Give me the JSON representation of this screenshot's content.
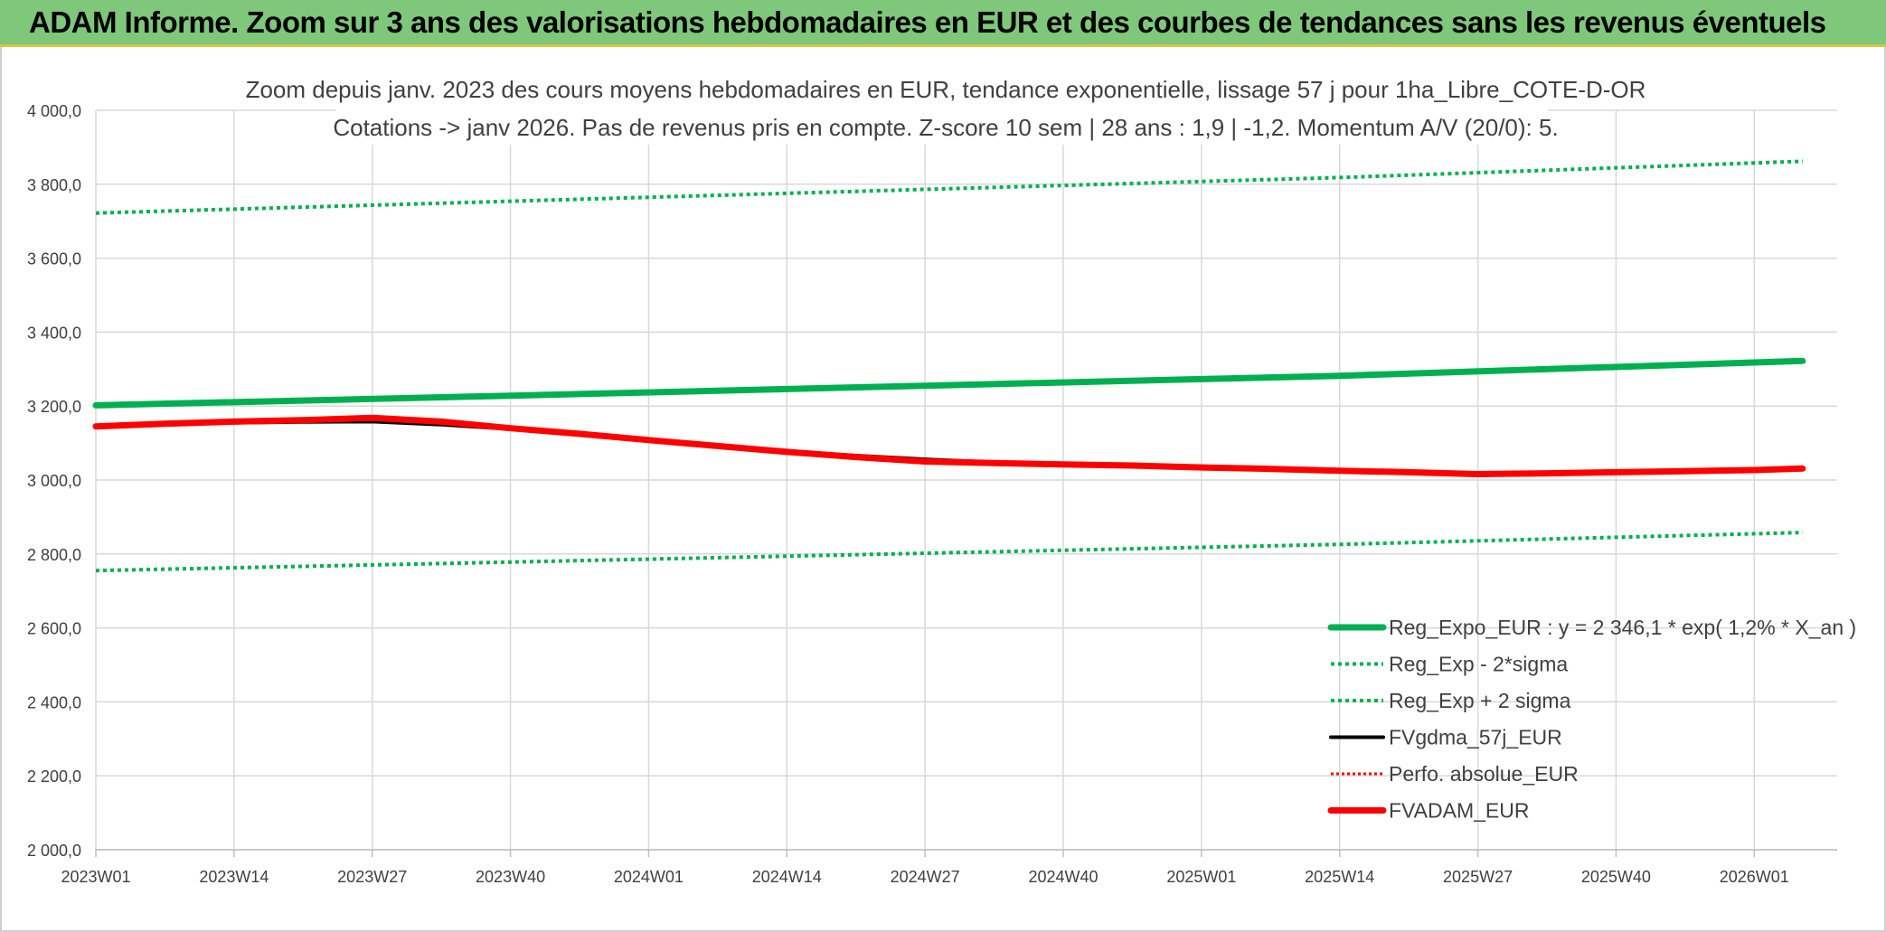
{
  "banner": {
    "title": "ADAM Informe. Zoom sur 3 ans des valorisations hebdomadaires en EUR et des courbes de tendances sans les revenus éventuels",
    "bg_color": "#7fc77a"
  },
  "chart_data": {
    "type": "line",
    "title_line1": "Zoom depuis janv. 2023 des cours moyens hebdomadaires en EUR, tendance exponentielle, lissage 57 j pour 1ha_Libre_COTE-D-OR",
    "title_line2": "Cotations -> janv 2026. Pas de revenus pris en compte. Z-score 10 sem | 28 ans : 1,9 | -1,2. Momentum A/V (20/0): 5.",
    "x_categories": [
      "2023W01",
      "2023W14",
      "2023W27",
      "2023W40",
      "2024W01",
      "2024W14",
      "2024W27",
      "2024W40",
      "2025W01",
      "2025W14",
      "2025W27",
      "2025W40",
      "2026W01"
    ],
    "x_range": [
      0,
      12.6
    ],
    "ylim": [
      2000,
      4000
    ],
    "y_ticks": [
      "2 000,0",
      "2 200,0",
      "2 400,0",
      "2 600,0",
      "2 800,0",
      "3 000,0",
      "3 200,0",
      "3 400,0",
      "3 600,0",
      "3 800,0",
      "4 000,0"
    ],
    "y_tick_values": [
      2000,
      2200,
      2400,
      2600,
      2800,
      3000,
      3200,
      3400,
      3600,
      3800,
      4000
    ],
    "grid": true,
    "legend_position": "bottom-right",
    "series": [
      {
        "name": "Reg_Expo_EUR : y = 2 346,1 * exp( 1,2% *  X_an )",
        "color": "#00b050",
        "style": "solid",
        "width": 7,
        "x": [
          0,
          3,
          6,
          9,
          12.35
        ],
        "y": [
          3202,
          3228,
          3255,
          3282,
          3322
        ]
      },
      {
        "name": "Reg_Exp - 2*sigma",
        "color": "#00b050",
        "style": "dotted",
        "width": 4,
        "x": [
          0,
          3,
          6,
          9,
          12.35
        ],
        "y": [
          2755,
          2778,
          2802,
          2826,
          2858
        ]
      },
      {
        "name": "Reg_Exp + 2 sigma",
        "color": "#00b050",
        "style": "dotted",
        "width": 4,
        "x": [
          0,
          3,
          6,
          9,
          12.35
        ],
        "y": [
          3722,
          3754,
          3786,
          3818,
          3862
        ]
      },
      {
        "name": "FVgdma_57j_EUR",
        "color": "#000000",
        "style": "solid",
        "width": 4,
        "x": [
          0,
          0.5,
          1,
          1.5,
          2,
          2.5,
          3,
          3.5,
          4,
          4.5,
          5,
          5.5,
          6,
          6.5,
          7,
          7.5,
          8,
          8.5,
          9,
          9.5,
          10,
          10.5,
          11,
          11.5,
          12,
          12.35
        ],
        "y": [
          3145,
          3150,
          3155,
          3157,
          3158,
          3150,
          3138,
          3125,
          3110,
          3093,
          3078,
          3066,
          3056,
          3048,
          3042,
          3038,
          3034,
          3030,
          3025,
          3021,
          3018,
          3018,
          3020,
          3024,
          3027,
          3030
        ]
      },
      {
        "name": "Perfo. absolue_EUR",
        "color": "#ff0000",
        "style": "dotted",
        "width": 3,
        "x": [
          0,
          0.5,
          1,
          1.5,
          2,
          2.5,
          3,
          3.5,
          4,
          4.5,
          5,
          5.5,
          6,
          6.5,
          7,
          7.5,
          8,
          8.5,
          9,
          9.5,
          10,
          10.5,
          11,
          11.5,
          12,
          12.35
        ],
        "y": [
          3145,
          3152,
          3158,
          3162,
          3168,
          3158,
          3140,
          3125,
          3108,
          3092,
          3076,
          3062,
          3052,
          3047,
          3042,
          3039,
          3034,
          3030,
          3025,
          3021,
          3016,
          3018,
          3021,
          3024,
          3027,
          3031
        ]
      },
      {
        "name": "FVADAM_EUR",
        "color": "#ff0000",
        "style": "solid",
        "width": 7,
        "x": [
          0,
          0.5,
          1,
          1.5,
          2,
          2.5,
          3,
          3.5,
          4,
          4.5,
          5,
          5.5,
          6,
          6.5,
          7,
          7.5,
          8,
          8.5,
          9,
          9.5,
          10,
          10.5,
          11,
          11.5,
          12,
          12.35
        ],
        "y": [
          3145,
          3152,
          3158,
          3162,
          3168,
          3158,
          3140,
          3125,
          3108,
          3092,
          3076,
          3062,
          3050,
          3046,
          3042,
          3039,
          3034,
          3030,
          3025,
          3021,
          3016,
          3018,
          3021,
          3024,
          3027,
          3031
        ]
      }
    ]
  }
}
